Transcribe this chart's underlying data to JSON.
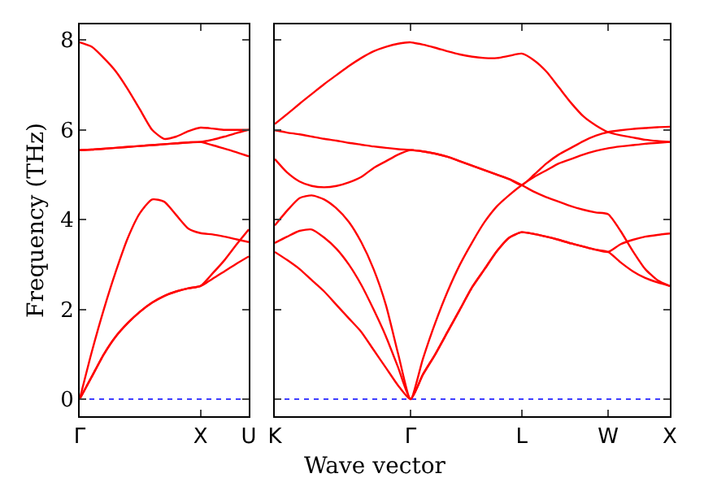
{
  "chart_data": [
    {
      "type": "line",
      "ylabel": "Frequency (THz)",
      "ylim": [
        -0.38,
        8.35
      ],
      "categories": [
        "Γ",
        null,
        null,
        null,
        null,
        null,
        null,
        null,
        null,
        null,
        "X",
        null,
        null,
        null,
        "U"
      ],
      "yticks": [
        0,
        2,
        4,
        6,
        8
      ],
      "ref_lines": [
        {
          "axis": "y",
          "value": 0,
          "color": "#0000ff",
          "line_style": "dotted"
        }
      ],
      "series": [
        {
          "color": "#ff0000",
          "values": [
            7.95,
            7.85,
            7.6,
            7.3,
            6.9,
            6.45,
            6.0,
            5.8,
            5.85,
            5.97,
            6.05,
            6.03,
            6.0,
            6.0,
            6.0
          ]
        },
        {
          "color": "#ff0000",
          "values": [
            5.55,
            5.56,
            5.58,
            5.6,
            5.62,
            5.64,
            5.66,
            5.68,
            5.7,
            5.72,
            5.73,
            5.78,
            5.85,
            5.93,
            6.0
          ]
        },
        {
          "color": "#ff0000",
          "values": [
            5.55,
            5.56,
            5.58,
            5.6,
            5.62,
            5.64,
            5.66,
            5.68,
            5.7,
            5.72,
            5.73,
            5.66,
            5.58,
            5.5,
            5.41
          ]
        },
        {
          "color": "#ff0000",
          "values": [
            0,
            1.05,
            2.0,
            2.85,
            3.6,
            4.15,
            4.45,
            4.4,
            4.1,
            3.8,
            3.7,
            3.67,
            3.62,
            3.56,
            3.5
          ]
        },
        {
          "color": "#ff0000",
          "values": [
            0,
            0.5,
            1.0,
            1.4,
            1.7,
            1.95,
            2.15,
            2.3,
            2.4,
            2.47,
            2.52,
            2.8,
            3.1,
            3.45,
            3.78
          ]
        },
        {
          "color": "#ff0000",
          "values": [
            0,
            0.5,
            1.0,
            1.4,
            1.7,
            1.95,
            2.15,
            2.3,
            2.4,
            2.47,
            2.52,
            2.68,
            2.85,
            3.02,
            3.18
          ]
        }
      ]
    },
    {
      "type": "line",
      "xlabel": "Wave vector",
      "ylim": [
        -0.38,
        8.35
      ],
      "tick_labels": "x",
      "categories": [
        "K",
        null,
        null,
        null,
        null,
        null,
        null,
        null,
        null,
        null,
        null,
        "Γ",
        null,
        null,
        null,
        null,
        null,
        null,
        null,
        null,
        "L",
        null,
        null,
        null,
        null,
        null,
        null,
        "W",
        null,
        null,
        null,
        null,
        "X"
      ],
      "yticks": [
        0,
        2,
        4,
        6,
        8
      ],
      "ref_lines": [
        {
          "axis": "y",
          "value": 0,
          "color": "#0000ff",
          "line_style": "dotted"
        }
      ],
      "series": [
        {
          "color": "#ff0000",
          "values": [
            6.13,
            6.35,
            6.58,
            6.8,
            7.02,
            7.22,
            7.42,
            7.6,
            7.75,
            7.85,
            7.92,
            7.95,
            7.9,
            7.83,
            7.75,
            7.68,
            7.63,
            7.6,
            7.6,
            7.65,
            7.7,
            7.55,
            7.3,
            6.95,
            6.6,
            6.3,
            6.1,
            5.95,
            5.88,
            5.83,
            5.78,
            5.75,
            5.73
          ]
        },
        {
          "color": "#ff0000",
          "values": [
            5.99,
            5.94,
            5.9,
            5.85,
            5.8,
            5.76,
            5.71,
            5.67,
            5.63,
            5.6,
            5.57,
            5.55,
            5.52,
            5.47,
            5.4,
            5.3,
            5.2,
            5.1,
            5.0,
            4.9,
            4.77,
            5.0,
            5.25,
            5.45,
            5.6,
            5.75,
            5.87,
            5.95,
            5.99,
            6.02,
            6.04,
            6.06,
            6.07
          ]
        },
        {
          "color": "#ff0000",
          "values": [
            5.35,
            5.05,
            4.85,
            4.75,
            4.72,
            4.75,
            4.83,
            4.95,
            5.15,
            5.3,
            5.45,
            5.55,
            5.52,
            5.47,
            5.4,
            5.3,
            5.2,
            5.1,
            5.0,
            4.9,
            4.77,
            4.62,
            4.5,
            4.4,
            4.3,
            4.22,
            4.16,
            4.12,
            3.75,
            3.3,
            2.9,
            2.65,
            2.52
          ]
        },
        {
          "color": "#ff0000",
          "values": [
            3.87,
            4.2,
            4.48,
            4.54,
            4.45,
            4.25,
            3.95,
            3.5,
            2.9,
            2.1,
            1.0,
            0,
            0.9,
            1.7,
            2.4,
            3.0,
            3.5,
            3.95,
            4.3,
            4.55,
            4.77,
            4.95,
            5.1,
            5.25,
            5.35,
            5.45,
            5.53,
            5.59,
            5.63,
            5.66,
            5.69,
            5.71,
            5.73
          ]
        },
        {
          "color": "#ff0000",
          "values": [
            3.48,
            3.62,
            3.75,
            3.78,
            3.6,
            3.35,
            3.0,
            2.55,
            2.0,
            1.4,
            0.7,
            0,
            0.55,
            1.0,
            1.5,
            2.0,
            2.5,
            2.9,
            3.3,
            3.6,
            3.72,
            3.68,
            3.62,
            3.55,
            3.47,
            3.4,
            3.33,
            3.28,
            3.45,
            3.55,
            3.62,
            3.66,
            3.69
          ]
        },
        {
          "color": "#ff0000",
          "values": [
            3.28,
            3.1,
            2.9,
            2.65,
            2.4,
            2.1,
            1.8,
            1.5,
            1.1,
            0.7,
            0.3,
            0,
            0.55,
            1.0,
            1.5,
            2.0,
            2.5,
            2.9,
            3.3,
            3.6,
            3.72,
            3.68,
            3.62,
            3.55,
            3.47,
            3.4,
            3.33,
            3.28,
            3.05,
            2.85,
            2.7,
            2.6,
            2.52
          ]
        }
      ]
    }
  ]
}
